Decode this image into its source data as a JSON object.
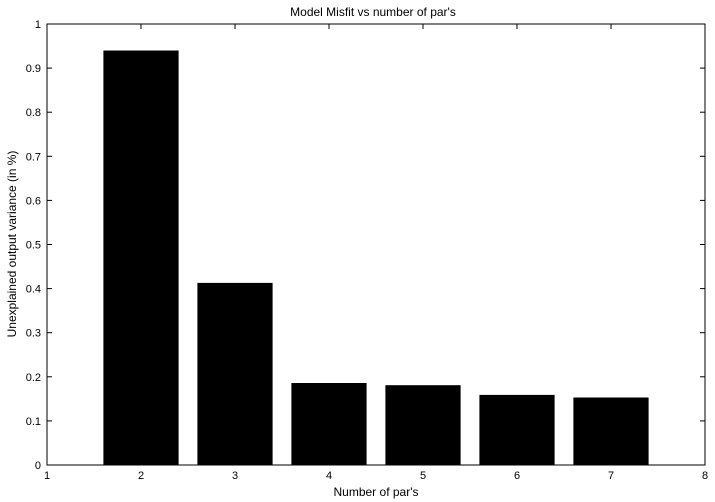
{
  "chart_data": {
    "type": "bar",
    "title": "Model Misfit vs number of par's",
    "xlabel": "Number of par's",
    "ylabel": "Unexplained output variance (in %)",
    "x": [
      2,
      3,
      4,
      5,
      6,
      7
    ],
    "values": [
      0.94,
      0.413,
      0.186,
      0.181,
      0.159,
      0.153
    ],
    "xlim": [
      1,
      8
    ],
    "ylim": [
      0,
      1
    ],
    "xticks": [
      "1",
      "2",
      "3",
      "4",
      "5",
      "6",
      "7",
      "8"
    ],
    "yticks": [
      "0",
      "0.1",
      "0.2",
      "0.3",
      "0.4",
      "0.5",
      "0.6",
      "0.7",
      "0.8",
      "0.9",
      "1"
    ],
    "bar_color": "#000000",
    "grid": false,
    "legend": "none"
  }
}
